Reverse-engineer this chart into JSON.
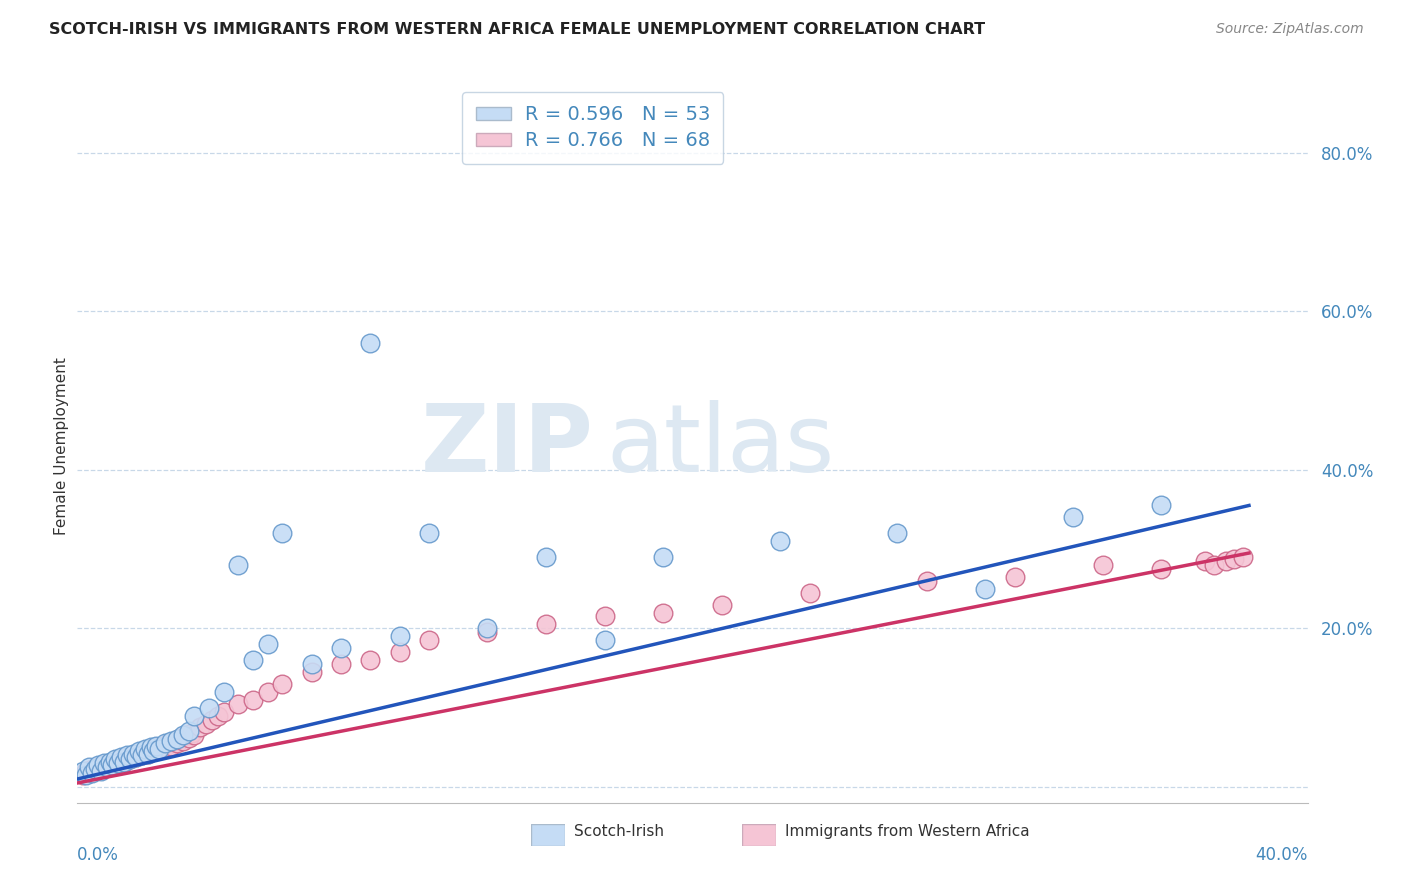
{
  "title": "SCOTCH-IRISH VS IMMIGRANTS FROM WESTERN AFRICA FEMALE UNEMPLOYMENT CORRELATION CHART",
  "source": "Source: ZipAtlas.com",
  "ylabel": "Female Unemployment",
  "xlim": [
    0.0,
    0.42
  ],
  "ylim": [
    -0.02,
    0.88
  ],
  "scotch_irish_color": "#c5dcf5",
  "scotch_irish_edge": "#6699cc",
  "western_africa_color": "#f5c5d5",
  "western_africa_edge": "#cc6688",
  "trendline_scotch_color": "#2255bb",
  "trendline_africa_color": "#cc3366",
  "background_color": "#ffffff",
  "grid_color": "#c8d8e8",
  "watermark_zip": "ZIP",
  "watermark_atlas": "atlas",
  "R_scotch": "0.596",
  "N_scotch": "53",
  "R_africa": "0.766",
  "N_africa": "68",
  "scotch_irish_x": [
    0.002,
    0.003,
    0.004,
    0.005,
    0.006,
    0.007,
    0.008,
    0.009,
    0.01,
    0.011,
    0.012,
    0.013,
    0.014,
    0.015,
    0.016,
    0.017,
    0.018,
    0.019,
    0.02,
    0.021,
    0.022,
    0.023,
    0.024,
    0.025,
    0.026,
    0.027,
    0.028,
    0.03,
    0.032,
    0.034,
    0.036,
    0.038,
    0.04,
    0.045,
    0.05,
    0.055,
    0.06,
    0.065,
    0.07,
    0.08,
    0.09,
    0.1,
    0.11,
    0.12,
    0.14,
    0.16,
    0.18,
    0.2,
    0.24,
    0.28,
    0.31,
    0.34,
    0.37
  ],
  "scotch_irish_y": [
    0.02,
    0.015,
    0.025,
    0.018,
    0.022,
    0.028,
    0.02,
    0.03,
    0.025,
    0.032,
    0.028,
    0.035,
    0.03,
    0.038,
    0.032,
    0.04,
    0.035,
    0.042,
    0.038,
    0.045,
    0.04,
    0.048,
    0.042,
    0.05,
    0.045,
    0.052,
    0.048,
    0.055,
    0.058,
    0.06,
    0.065,
    0.07,
    0.09,
    0.1,
    0.12,
    0.28,
    0.16,
    0.18,
    0.32,
    0.155,
    0.175,
    0.56,
    0.19,
    0.32,
    0.2,
    0.29,
    0.185,
    0.29,
    0.31,
    0.32,
    0.25,
    0.34,
    0.355
  ],
  "western_africa_x": [
    0.002,
    0.003,
    0.004,
    0.005,
    0.006,
    0.007,
    0.008,
    0.009,
    0.01,
    0.011,
    0.012,
    0.013,
    0.014,
    0.015,
    0.016,
    0.017,
    0.018,
    0.019,
    0.02,
    0.021,
    0.022,
    0.023,
    0.024,
    0.025,
    0.026,
    0.027,
    0.028,
    0.029,
    0.03,
    0.031,
    0.032,
    0.033,
    0.034,
    0.035,
    0.036,
    0.037,
    0.038,
    0.039,
    0.04,
    0.042,
    0.044,
    0.046,
    0.048,
    0.05,
    0.055,
    0.06,
    0.065,
    0.07,
    0.08,
    0.09,
    0.1,
    0.11,
    0.12,
    0.14,
    0.16,
    0.18,
    0.2,
    0.22,
    0.25,
    0.29,
    0.32,
    0.35,
    0.37,
    0.385,
    0.388,
    0.392,
    0.395,
    0.398
  ],
  "western_africa_y": [
    0.015,
    0.02,
    0.018,
    0.022,
    0.02,
    0.025,
    0.022,
    0.028,
    0.025,
    0.03,
    0.028,
    0.032,
    0.03,
    0.035,
    0.032,
    0.038,
    0.035,
    0.04,
    0.038,
    0.042,
    0.04,
    0.045,
    0.042,
    0.048,
    0.045,
    0.05,
    0.048,
    0.052,
    0.05,
    0.055,
    0.052,
    0.058,
    0.055,
    0.062,
    0.058,
    0.065,
    0.062,
    0.068,
    0.065,
    0.075,
    0.08,
    0.085,
    0.09,
    0.095,
    0.105,
    0.11,
    0.12,
    0.13,
    0.145,
    0.155,
    0.16,
    0.17,
    0.185,
    0.195,
    0.205,
    0.215,
    0.22,
    0.23,
    0.245,
    0.26,
    0.265,
    0.28,
    0.275,
    0.285,
    0.28,
    0.285,
    0.288,
    0.29
  ],
  "trendline_si_x0": 0.0,
  "trendline_si_y0": 0.01,
  "trendline_si_x1": 0.4,
  "trendline_si_y1": 0.355,
  "trendline_wa_x0": 0.0,
  "trendline_wa_y0": 0.005,
  "trendline_wa_x1": 0.4,
  "trendline_wa_y1": 0.295
}
